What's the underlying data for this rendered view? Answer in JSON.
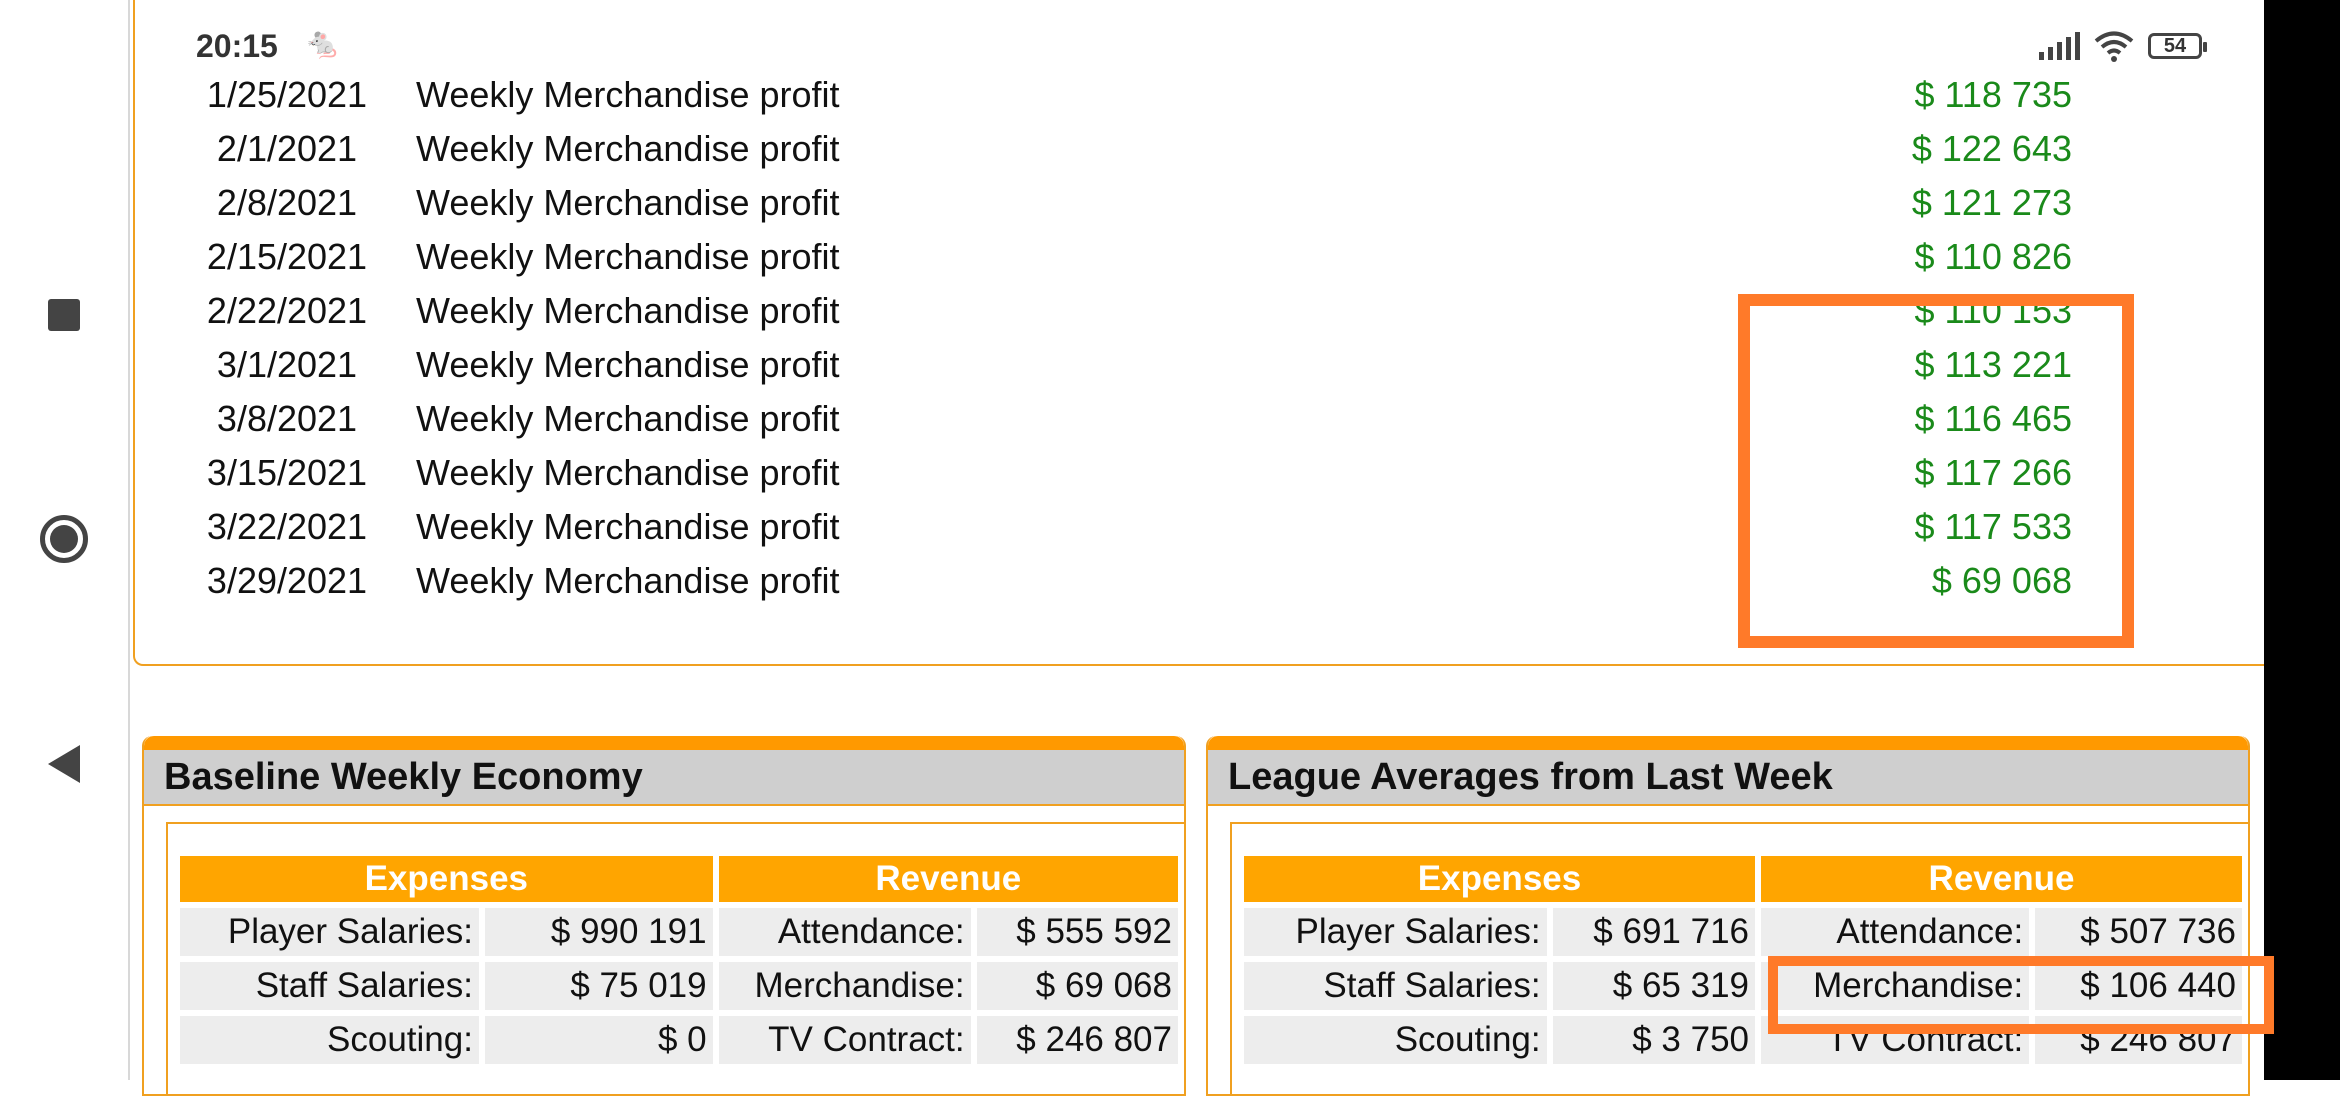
{
  "status": {
    "time": "20:15",
    "battery": "54"
  },
  "history": [
    {
      "date": "1/25/2021",
      "desc": "Weekly Merchandise profit",
      "amount": "$ 118 735"
    },
    {
      "date": "2/1/2021",
      "desc": "Weekly Merchandise profit",
      "amount": "$ 122 643"
    },
    {
      "date": "2/8/2021",
      "desc": "Weekly Merchandise profit",
      "amount": "$ 121 273"
    },
    {
      "date": "2/15/2021",
      "desc": "Weekly Merchandise profit",
      "amount": "$ 110 826"
    },
    {
      "date": "2/22/2021",
      "desc": "Weekly Merchandise profit",
      "amount": "$ 110 153"
    },
    {
      "date": "3/1/2021",
      "desc": "Weekly Merchandise profit",
      "amount": "$ 113 221"
    },
    {
      "date": "3/8/2021",
      "desc": "Weekly Merchandise profit",
      "amount": "$ 116 465"
    },
    {
      "date": "3/15/2021",
      "desc": "Weekly Merchandise profit",
      "amount": "$ 117 266"
    },
    {
      "date": "3/22/2021",
      "desc": "Weekly Merchandise profit",
      "amount": "$ 117 533"
    },
    {
      "date": "3/29/2021",
      "desc": "Weekly Merchandise profit",
      "amount": "$ 69 068"
    }
  ],
  "colors": {
    "accent": "#ff9900",
    "highlight": "#ff7a29",
    "profit": "#1a8a1a",
    "header_bg": "#cfcfcf"
  },
  "baseline": {
    "title": "Baseline Weekly Economy",
    "expenses_header": "Expenses",
    "revenue_header": "Revenue",
    "rows": [
      {
        "exp_label": "Player Salaries:",
        "exp_value": "$ 990 191",
        "rev_label": "Attendance:",
        "rev_value": "$ 555 592"
      },
      {
        "exp_label": "Staff Salaries:",
        "exp_value": "$ 75 019",
        "rev_label": "Merchandise:",
        "rev_value": "$ 69 068"
      },
      {
        "exp_label": "Scouting:",
        "exp_value": "$ 0",
        "rev_label": "TV Contract:",
        "rev_value": "$ 246 807"
      }
    ]
  },
  "league": {
    "title": "League Averages from Last Week",
    "expenses_header": "Expenses",
    "revenue_header": "Revenue",
    "rows": [
      {
        "exp_label": "Player Salaries:",
        "exp_value": "$ 691 716",
        "rev_label": "Attendance:",
        "rev_value": "$ 507 736"
      },
      {
        "exp_label": "Staff Salaries:",
        "exp_value": "$ 65 319",
        "rev_label": "Merchandise:",
        "rev_value": "$ 106 440"
      },
      {
        "exp_label": "Scouting:",
        "exp_value": "$ 3 750",
        "rev_label": "TV Contract:",
        "rev_value": "$ 246 807"
      }
    ]
  }
}
